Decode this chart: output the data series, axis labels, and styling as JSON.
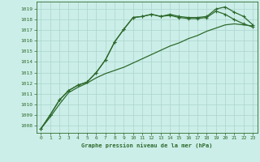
{
  "title": "Graphe pression niveau de la mer (hPa)",
  "bg_color": "#cceee8",
  "grid_color": "#aad4ce",
  "line_color": "#2d6a2d",
  "xlim": [
    -0.5,
    23.5
  ],
  "ylim": [
    1007.3,
    1019.7
  ],
  "xticks": [
    0,
    1,
    2,
    3,
    4,
    5,
    6,
    7,
    8,
    9,
    10,
    11,
    12,
    13,
    14,
    15,
    16,
    17,
    18,
    19,
    20,
    21,
    22,
    23
  ],
  "yticks": [
    1008,
    1009,
    1010,
    1011,
    1012,
    1013,
    1014,
    1015,
    1016,
    1017,
    1018,
    1019
  ],
  "series1_x": [
    0,
    1,
    2,
    3,
    4,
    5,
    6,
    7,
    8,
    9,
    10,
    11,
    12,
    13,
    14,
    15,
    16,
    17,
    18,
    19,
    20,
    21,
    22,
    23
  ],
  "series1": [
    1007.7,
    1009.0,
    1010.4,
    1011.3,
    1011.8,
    1012.1,
    1013.0,
    1014.2,
    1015.9,
    1017.1,
    1018.2,
    1018.3,
    1018.5,
    1018.3,
    1018.5,
    1018.3,
    1018.2,
    1018.2,
    1018.3,
    1019.0,
    1019.2,
    1018.7,
    1018.3,
    1017.5
  ],
  "series2_x": [
    0,
    1,
    2,
    3,
    4,
    5,
    6,
    7,
    8,
    9,
    10,
    11,
    12,
    13,
    14,
    15,
    16,
    17,
    18,
    19,
    20,
    21,
    22,
    23
  ],
  "series2": [
    1007.7,
    1009.0,
    1010.4,
    1011.3,
    1011.8,
    1012.1,
    1013.0,
    1014.2,
    1015.9,
    1017.1,
    1018.2,
    1018.3,
    1018.5,
    1018.3,
    1018.4,
    1018.2,
    1018.1,
    1018.1,
    1018.2,
    1018.8,
    1018.5,
    1018.0,
    1017.6,
    1017.3
  ],
  "series3_x": [
    0,
    1,
    2,
    3,
    4,
    5,
    6,
    7,
    8,
    9,
    10,
    11,
    12,
    13,
    14,
    15,
    16,
    17,
    18,
    19,
    20,
    21,
    22,
    23
  ],
  "series3": [
    1007.7,
    1008.8,
    1010.0,
    1011.1,
    1011.6,
    1012.0,
    1012.5,
    1012.9,
    1013.2,
    1013.5,
    1013.9,
    1014.3,
    1014.7,
    1015.1,
    1015.5,
    1015.8,
    1016.2,
    1016.5,
    1016.9,
    1017.2,
    1017.5,
    1017.6,
    1017.5,
    1017.4
  ]
}
